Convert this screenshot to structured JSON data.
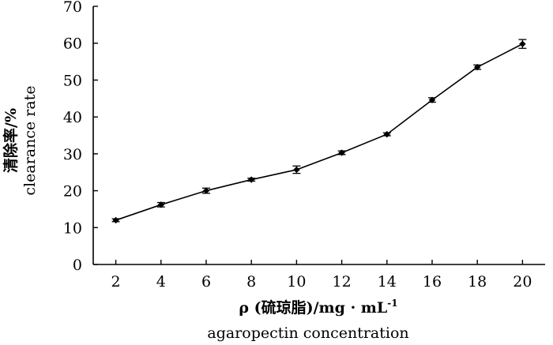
{
  "chart_data": {
    "type": "line",
    "x": [
      2,
      4,
      6,
      8,
      10,
      12,
      14,
      16,
      18,
      20
    ],
    "series": [
      {
        "values": [
          12.0,
          16.2,
          20.0,
          23.0,
          25.7,
          30.3,
          35.3,
          44.6,
          53.5,
          59.8
        ],
        "errors": [
          0.4,
          0.6,
          0.7,
          0.4,
          1.0,
          0.5,
          0.4,
          0.6,
          0.6,
          1.2
        ]
      }
    ],
    "xticks": [
      "2",
      "4",
      "6",
      "8",
      "10",
      "12",
      "14",
      "16",
      "18",
      "20"
    ],
    "yticks": [
      "0",
      "10",
      "20",
      "30",
      "40",
      "50",
      "60",
      "70"
    ],
    "xlim": [
      1,
      21
    ],
    "ylim": [
      0,
      70
    ],
    "xlabel": {
      "line1": "ρ (硫琼脂)/mg · mL",
      "line1_sup": "-1",
      "line2": "agaropectin concentration"
    },
    "ylabel": {
      "line1": "清除率/%",
      "line2": "clearance rate"
    },
    "grid": false,
    "legend": "none",
    "colors": {
      "line": "#000000",
      "marker": "#000000",
      "axis": "#000000"
    }
  }
}
